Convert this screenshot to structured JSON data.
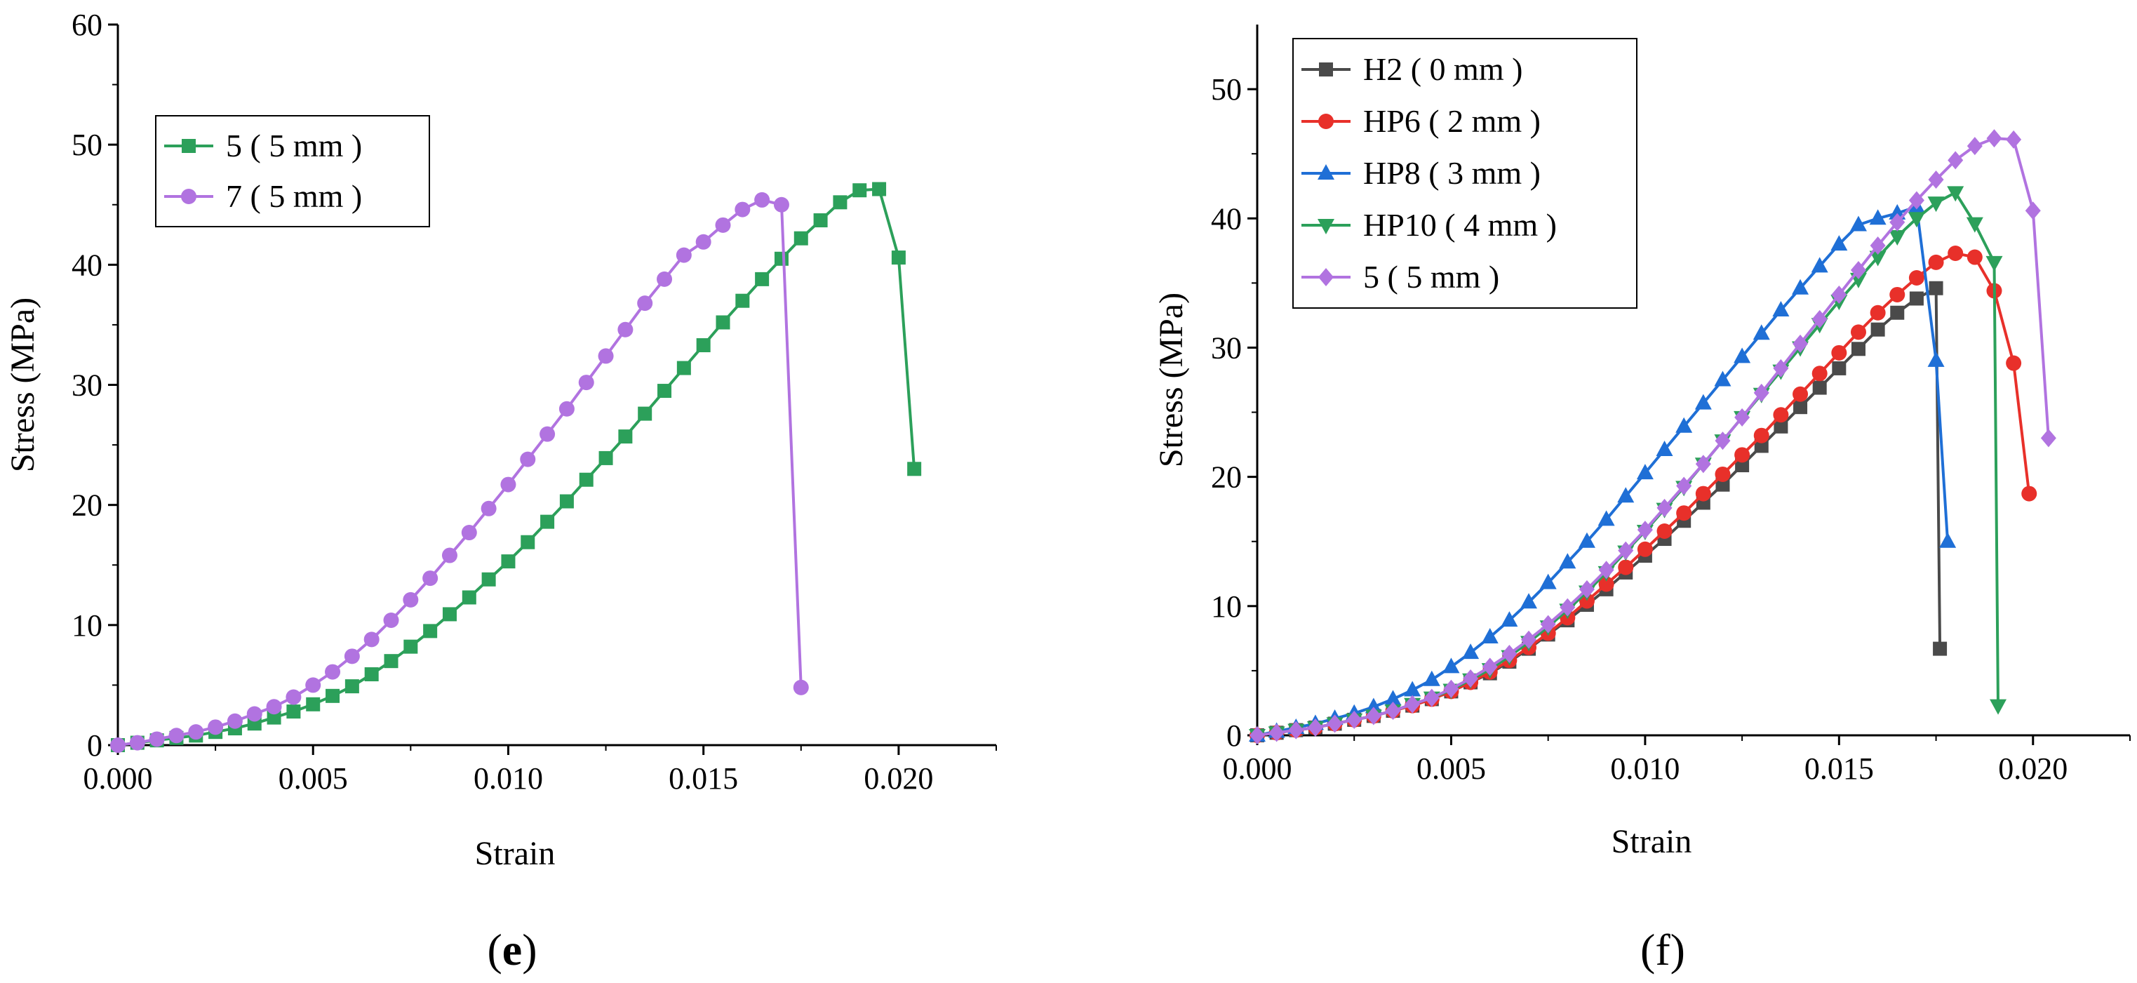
{
  "chart_data": [
    {
      "type": "line",
      "panel_label": "e",
      "xlabel": "Strain",
      "ylabel": "Stress (MPa)",
      "xlim": [
        0,
        0.0225
      ],
      "ylim": [
        0,
        60
      ],
      "xticks": [
        "0.000",
        "0.005",
        "0.010",
        "0.015",
        "0.020"
      ],
      "yticks": [
        "0",
        "10",
        "20",
        "30",
        "40",
        "50",
        "60"
      ],
      "legend_position": "upper-left",
      "series": [
        {
          "name": "5 ( 5 mm )",
          "color": "#2ca05a",
          "marker": "square",
          "x": [
            0,
            0.0005,
            0.001,
            0.0015,
            0.002,
            0.0025,
            0.003,
            0.0035,
            0.004,
            0.0045,
            0.005,
            0.0055,
            0.006,
            0.0065,
            0.007,
            0.0075,
            0.008,
            0.0085,
            0.009,
            0.0095,
            0.01,
            0.0105,
            0.011,
            0.0115,
            0.012,
            0.0125,
            0.013,
            0.0135,
            0.014,
            0.0145,
            0.015,
            0.0155,
            0.016,
            0.0165,
            0.017,
            0.0175,
            0.018,
            0.0185,
            0.019,
            0.0195,
            0.02,
            0.0204
          ],
          "y": [
            0,
            0.2,
            0.4,
            0.6,
            0.8,
            1.1,
            1.4,
            1.8,
            2.3,
            2.8,
            3.4,
            4.1,
            4.9,
            5.9,
            7.0,
            8.2,
            9.5,
            10.9,
            12.3,
            13.8,
            15.3,
            16.9,
            18.6,
            20.3,
            22.1,
            23.9,
            25.7,
            27.6,
            29.5,
            31.4,
            33.3,
            35.2,
            37.0,
            38.8,
            40.5,
            42.2,
            43.7,
            45.2,
            46.2,
            46.3,
            40.6,
            23.0
          ]
        },
        {
          "name": "7 ( 5 mm )",
          "color": "#b173e0",
          "marker": "circle",
          "x": [
            0,
            0.0005,
            0.001,
            0.0015,
            0.002,
            0.0025,
            0.003,
            0.0035,
            0.004,
            0.0045,
            0.005,
            0.0055,
            0.006,
            0.0065,
            0.007,
            0.0075,
            0.008,
            0.0085,
            0.009,
            0.0095,
            0.01,
            0.0105,
            0.011,
            0.0115,
            0.012,
            0.0125,
            0.013,
            0.0135,
            0.014,
            0.0145,
            0.015,
            0.0155,
            0.016,
            0.0165,
            0.017,
            0.0175
          ],
          "y": [
            0,
            0.2,
            0.5,
            0.8,
            1.1,
            1.5,
            2.0,
            2.6,
            3.2,
            4.0,
            5.0,
            6.1,
            7.4,
            8.8,
            10.4,
            12.1,
            13.9,
            15.8,
            17.7,
            19.7,
            21.7,
            23.8,
            25.9,
            28.0,
            30.2,
            32.4,
            34.6,
            36.8,
            38.8,
            40.8,
            41.9,
            43.3,
            44.6,
            45.4,
            45.0,
            4.8
          ]
        }
      ]
    },
    {
      "type": "line",
      "panel_label": "f",
      "xlabel": "Strain",
      "ylabel": "Stress (MPa)",
      "xlim": [
        0,
        0.0225
      ],
      "ylim": [
        0,
        55
      ],
      "xticks": [
        "0.000",
        "0.005",
        "0.010",
        "0.015",
        "0.020"
      ],
      "yticks": [
        "0",
        "10",
        "20",
        "30",
        "40",
        "50"
      ],
      "legend_position": "upper-left",
      "series": [
        {
          "name": "H2 ( 0 mm )",
          "color": "#4a4a4a",
          "marker": "square",
          "x": [
            0,
            0.0005,
            0.001,
            0.0015,
            0.002,
            0.0025,
            0.003,
            0.0035,
            0.004,
            0.0045,
            0.005,
            0.0055,
            0.006,
            0.0065,
            0.007,
            0.0075,
            0.008,
            0.0085,
            0.009,
            0.0095,
            0.01,
            0.0105,
            0.011,
            0.0115,
            0.012,
            0.0125,
            0.013,
            0.0135,
            0.014,
            0.0145,
            0.015,
            0.0155,
            0.016,
            0.0165,
            0.017,
            0.0175,
            0.0176
          ],
          "y": [
            0,
            0.2,
            0.4,
            0.6,
            0.9,
            1.2,
            1.5,
            1.9,
            2.3,
            2.8,
            3.4,
            4.1,
            4.8,
            5.7,
            6.7,
            7.8,
            8.9,
            10.1,
            11.3,
            12.6,
            13.9,
            15.2,
            16.6,
            18.0,
            19.4,
            20.9,
            22.4,
            23.9,
            25.4,
            26.9,
            28.4,
            29.9,
            31.4,
            32.7,
            33.8,
            34.6,
            6.7
          ]
        },
        {
          "name": "HP6 ( 2 mm )",
          "color": "#e8302a",
          "marker": "circle",
          "x": [
            0,
            0.0005,
            0.001,
            0.0015,
            0.002,
            0.0025,
            0.003,
            0.0035,
            0.004,
            0.0045,
            0.005,
            0.0055,
            0.006,
            0.0065,
            0.007,
            0.0075,
            0.008,
            0.0085,
            0.009,
            0.0095,
            0.01,
            0.0105,
            0.011,
            0.0115,
            0.012,
            0.0125,
            0.013,
            0.0135,
            0.014,
            0.0145,
            0.015,
            0.0155,
            0.016,
            0.0165,
            0.017,
            0.0175,
            0.018,
            0.0185,
            0.019,
            0.0195,
            0.0199
          ],
          "y": [
            0,
            0.2,
            0.4,
            0.6,
            0.9,
            1.2,
            1.5,
            1.9,
            2.3,
            2.8,
            3.4,
            4.1,
            4.9,
            5.8,
            6.8,
            7.9,
            9.1,
            10.4,
            11.7,
            13.0,
            14.4,
            15.8,
            17.2,
            18.7,
            20.2,
            21.7,
            23.2,
            24.8,
            26.4,
            28.0,
            29.6,
            31.2,
            32.7,
            34.1,
            35.4,
            36.6,
            37.3,
            37.0,
            34.4,
            28.8,
            18.7
          ]
        },
        {
          "name": "HP8 ( 3 mm )",
          "color": "#1f6fd6",
          "marker": "triangle-up",
          "x": [
            0,
            0.0005,
            0.001,
            0.0015,
            0.002,
            0.0025,
            0.003,
            0.0035,
            0.004,
            0.0045,
            0.005,
            0.0055,
            0.006,
            0.0065,
            0.007,
            0.0075,
            0.008,
            0.0085,
            0.009,
            0.0095,
            0.01,
            0.0105,
            0.011,
            0.0115,
            0.012,
            0.0125,
            0.013,
            0.0135,
            0.014,
            0.0145,
            0.015,
            0.0155,
            0.016,
            0.0165,
            0.017,
            0.0175,
            0.0178
          ],
          "y": [
            0,
            0.3,
            0.6,
            0.9,
            1.3,
            1.7,
            2.2,
            2.8,
            3.5,
            4.3,
            5.3,
            6.4,
            7.6,
            8.9,
            10.3,
            11.8,
            13.4,
            15.0,
            16.7,
            18.5,
            20.3,
            22.1,
            23.9,
            25.7,
            27.5,
            29.3,
            31.1,
            32.9,
            34.6,
            36.3,
            38.0,
            39.5,
            40.0,
            40.4,
            40.9,
            29.0,
            15.0
          ]
        },
        {
          "name": "HP10 ( 4 mm )",
          "color": "#2ca05a",
          "marker": "triangle-down",
          "x": [
            0,
            0.0005,
            0.001,
            0.0015,
            0.002,
            0.0025,
            0.003,
            0.0035,
            0.004,
            0.0045,
            0.005,
            0.0055,
            0.006,
            0.0065,
            0.007,
            0.0075,
            0.008,
            0.0085,
            0.009,
            0.0095,
            0.01,
            0.0105,
            0.011,
            0.0115,
            0.012,
            0.0125,
            0.013,
            0.0135,
            0.014,
            0.0145,
            0.015,
            0.0155,
            0.016,
            0.0165,
            0.017,
            0.0175,
            0.018,
            0.0185,
            0.019,
            0.0191
          ],
          "y": [
            0,
            0.2,
            0.4,
            0.6,
            0.9,
            1.2,
            1.5,
            1.9,
            2.4,
            2.9,
            3.5,
            4.3,
            5.1,
            6.1,
            7.2,
            8.4,
            9.7,
            11.1,
            12.6,
            14.2,
            15.8,
            17.5,
            19.2,
            21.0,
            22.8,
            24.6,
            26.4,
            28.2,
            30.0,
            31.8,
            33.6,
            35.3,
            37.0,
            38.6,
            40.0,
            41.2,
            42.0,
            39.6,
            36.6,
            2.3
          ]
        },
        {
          "name": "5 ( 5 mm )",
          "color": "#b173e0",
          "marker": "diamond",
          "x": [
            0,
            0.0005,
            0.001,
            0.0015,
            0.002,
            0.0025,
            0.003,
            0.0035,
            0.004,
            0.0045,
            0.005,
            0.0055,
            0.006,
            0.0065,
            0.007,
            0.0075,
            0.008,
            0.0085,
            0.009,
            0.0095,
            0.01,
            0.0105,
            0.011,
            0.0115,
            0.012,
            0.0125,
            0.013,
            0.0135,
            0.014,
            0.0145,
            0.015,
            0.0155,
            0.016,
            0.0165,
            0.017,
            0.0175,
            0.018,
            0.0185,
            0.019,
            0.0195,
            0.02,
            0.0204
          ],
          "y": [
            0,
            0.2,
            0.4,
            0.6,
            0.9,
            1.2,
            1.5,
            1.9,
            2.4,
            2.9,
            3.6,
            4.4,
            5.3,
            6.3,
            7.4,
            8.6,
            9.9,
            11.3,
            12.8,
            14.3,
            15.9,
            17.6,
            19.3,
            21.0,
            22.8,
            24.6,
            26.5,
            28.4,
            30.3,
            32.2,
            34.1,
            36.0,
            37.9,
            39.7,
            41.4,
            43.0,
            44.5,
            45.6,
            46.2,
            46.1,
            40.6,
            23.0
          ]
        }
      ]
    }
  ]
}
